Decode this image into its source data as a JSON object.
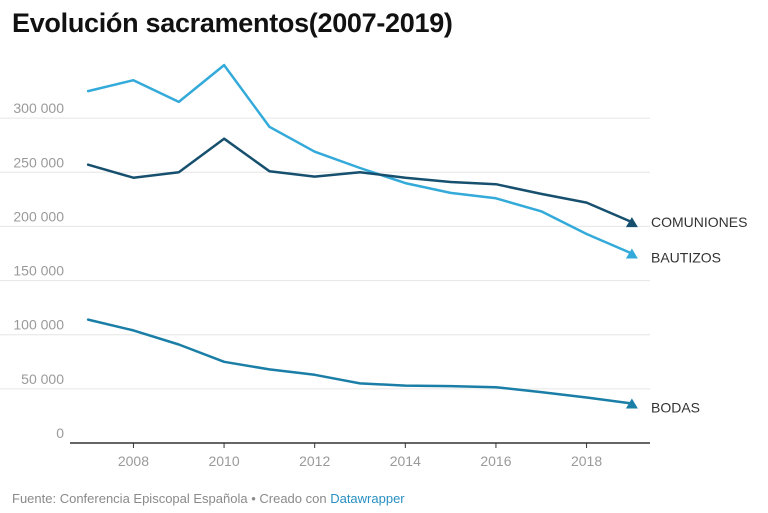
{
  "chart_data": {
    "type": "line",
    "title": "Evolución sacramentos(2007-2019)",
    "xlabel": "",
    "ylabel": "",
    "x": [
      2007,
      2008,
      2009,
      2010,
      2011,
      2012,
      2013,
      2014,
      2015,
      2016,
      2017,
      2018,
      2019
    ],
    "xlim": [
      2006.6,
      2019.4
    ],
    "ylim": [
      0,
      350000
    ],
    "x_ticks": [
      2008,
      2010,
      2012,
      2014,
      2016,
      2018
    ],
    "x_tick_labels": [
      "2008",
      "2010",
      "2012",
      "2014",
      "2016",
      "2018"
    ],
    "y_ticks": [
      0,
      50000,
      100000,
      150000,
      200000,
      250000,
      300000
    ],
    "y_tick_labels": [
      "0",
      "50 000",
      "100 000",
      "150 000",
      "200 000",
      "250 000",
      "300 000"
    ],
    "grid": true,
    "series": [
      {
        "name": "BAUTIZOS",
        "color": "#33aad9",
        "values": [
          325000,
          335000,
          315000,
          349000,
          292000,
          269000,
          254000,
          240000,
          231000,
          226000,
          214000,
          193000,
          175000
        ]
      },
      {
        "name": "COMUNIONES",
        "color": "#16506e",
        "values": [
          257000,
          245000,
          250000,
          281000,
          251000,
          246000,
          250000,
          245000,
          241000,
          239000,
          230000,
          222000,
          204000
        ]
      },
      {
        "name": "BODAS",
        "color": "#1a7ea6",
        "values": [
          114000,
          104000,
          91000,
          75000,
          68000,
          63000,
          55000,
          53000,
          52500,
          51500,
          47000,
          42000,
          36500
        ]
      }
    ]
  },
  "footer": {
    "prefix": "Fuente: Conferencia Episcopal Española • Creado con ",
    "link": "Datawrapper"
  }
}
